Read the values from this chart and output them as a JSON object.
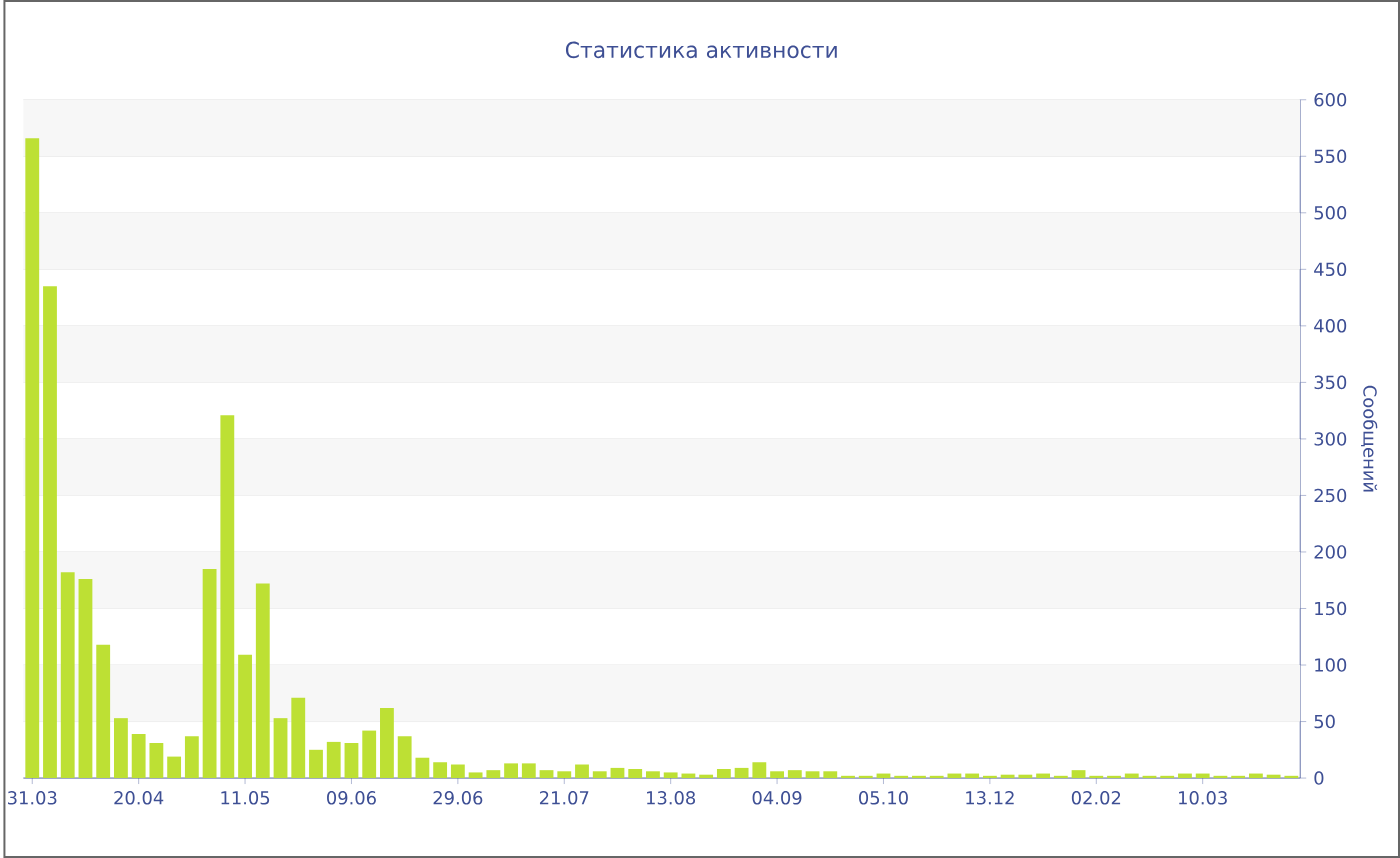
{
  "chart_data": {
    "type": "bar",
    "title": "Статистика активности",
    "ylabel": "Сообщений",
    "categories": [
      "31.03",
      null,
      null,
      null,
      null,
      null,
      "20.04",
      null,
      null,
      null,
      null,
      null,
      "11.05",
      null,
      null,
      null,
      null,
      null,
      "09.06",
      null,
      null,
      null,
      null,
      null,
      "29.06",
      null,
      null,
      null,
      null,
      null,
      "21.07",
      null,
      null,
      null,
      null,
      null,
      "13.08",
      null,
      null,
      null,
      null,
      null,
      "04.09",
      null,
      null,
      null,
      null,
      null,
      "05.10",
      null,
      null,
      null,
      null,
      null,
      "13.12",
      null,
      null,
      null,
      null,
      null,
      "02.02",
      null,
      null,
      null,
      null,
      null,
      "10.03",
      null,
      null,
      null,
      null,
      null
    ],
    "values": [
      566,
      435,
      182,
      176,
      118,
      53,
      39,
      31,
      19,
      37,
      185,
      321,
      109,
      172,
      53,
      71,
      25,
      32,
      31,
      42,
      62,
      37,
      18,
      14,
      12,
      5,
      7,
      13,
      13,
      7,
      6,
      12,
      6,
      9,
      8,
      6,
      5,
      4,
      3,
      8,
      9,
      14,
      6,
      7,
      6,
      6,
      2,
      2,
      4,
      2,
      2,
      2,
      4,
      4,
      2,
      3,
      3,
      4,
      2,
      7,
      2,
      2,
      4,
      2,
      2,
      4,
      4,
      2,
      2,
      4,
      3,
      2
    ],
    "color": "#bde034",
    "ylim": [
      0,
      600
    ],
    "yticks": [
      0,
      50,
      100,
      150,
      200,
      250,
      300,
      350,
      400,
      450,
      500,
      550,
      600
    ],
    "grid": "y"
  }
}
